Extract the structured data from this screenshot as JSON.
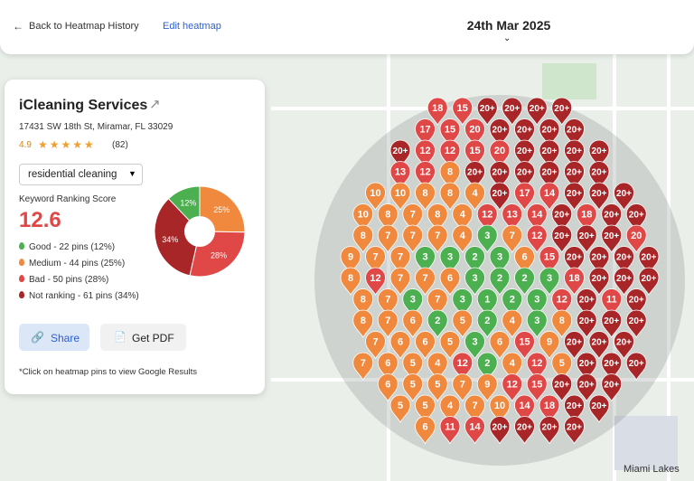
{
  "topbar": {
    "back": "Back to Heatmap History",
    "edit": "Edit heatmap",
    "date": "24th Mar 2025"
  },
  "business": {
    "name": "iCleaning Services",
    "address": "17431 SW 18th St, Miramar, FL 33029",
    "rating": "4.9",
    "reviews": "(82)"
  },
  "keyword": "residential cleaning",
  "score": {
    "label": "Keyword Ranking Score",
    "value": "12.6"
  },
  "chart_data": {
    "type": "pie",
    "categories": [
      "Good",
      "Medium",
      "Bad",
      "Not ranking"
    ],
    "values": [
      12,
      25,
      28,
      34
    ],
    "value_labels": [
      "12%",
      "25%",
      "28%",
      "34%"
    ],
    "colors": [
      "#4caf50",
      "#f0883e",
      "#e04848",
      "#a82628"
    ]
  },
  "legend": [
    "Good - 22 pins (12%)",
    "Medium - 44 pins (25%)",
    "Bad - 50 pins (28%)",
    "Not ranking - 61 pins (34%)"
  ],
  "buttons": {
    "share": "Share",
    "pdf": "Get PDF"
  },
  "note": "*Click on heatmap pins to view Google Results",
  "map_labels": [
    "Miami Lakes"
  ],
  "pins": [
    [
      "18",
      "15",
      "20+",
      "20+",
      "20+",
      "20+"
    ],
    [
      "17",
      "15",
      "20",
      "20+",
      "20+",
      "20+",
      "20+"
    ],
    [
      "20+",
      "12",
      "12",
      "15",
      "20",
      "20+",
      "20+",
      "20+",
      "20+"
    ],
    [
      "13",
      "12",
      "8",
      "20+",
      "20+",
      "20+",
      "20+",
      "20+",
      "20+"
    ],
    [
      "10",
      "10",
      "8",
      "8",
      "4",
      "20+",
      "17",
      "14",
      "20+",
      "20+",
      "20+"
    ],
    [
      "10",
      "8",
      "7",
      "8",
      "4",
      "12",
      "13",
      "14",
      "20+",
      "18",
      "20+",
      "20+"
    ],
    [
      "8",
      "7",
      "7",
      "7",
      "4",
      "3",
      "7",
      "12",
      "20+",
      "20+",
      "20+",
      "20"
    ],
    [
      "9",
      "7",
      "7",
      "3",
      "3",
      "2",
      "3",
      "6",
      "15",
      "20+",
      "20+",
      "20+",
      "20+"
    ],
    [
      "8",
      "12",
      "7",
      "7",
      "6",
      "3",
      "2",
      "2",
      "3",
      "18",
      "20+",
      "20+",
      "20+"
    ],
    [
      "8",
      "7",
      "3",
      "7",
      "3",
      "1",
      "2",
      "3",
      "12",
      "20+",
      "11",
      "20+"
    ],
    [
      "8",
      "7",
      "6",
      "2",
      "5",
      "2",
      "4",
      "3",
      "8",
      "20+",
      "20+",
      "20+"
    ],
    [
      "7",
      "6",
      "6",
      "5",
      "3",
      "6",
      "15",
      "9",
      "20+",
      "20+",
      "20+"
    ],
    [
      "7",
      "6",
      "5",
      "4",
      "12",
      "2",
      "4",
      "12",
      "5",
      "20+",
      "20+",
      "20+"
    ],
    [
      "6",
      "5",
      "5",
      "7",
      "9",
      "12",
      "15",
      "20+",
      "20+",
      "20+"
    ],
    [
      "5",
      "5",
      "4",
      "7",
      "10",
      "14",
      "18",
      "20+",
      "20+"
    ],
    [
      "6",
      "11",
      "14",
      "20+",
      "20+",
      "20+",
      "20+"
    ]
  ]
}
